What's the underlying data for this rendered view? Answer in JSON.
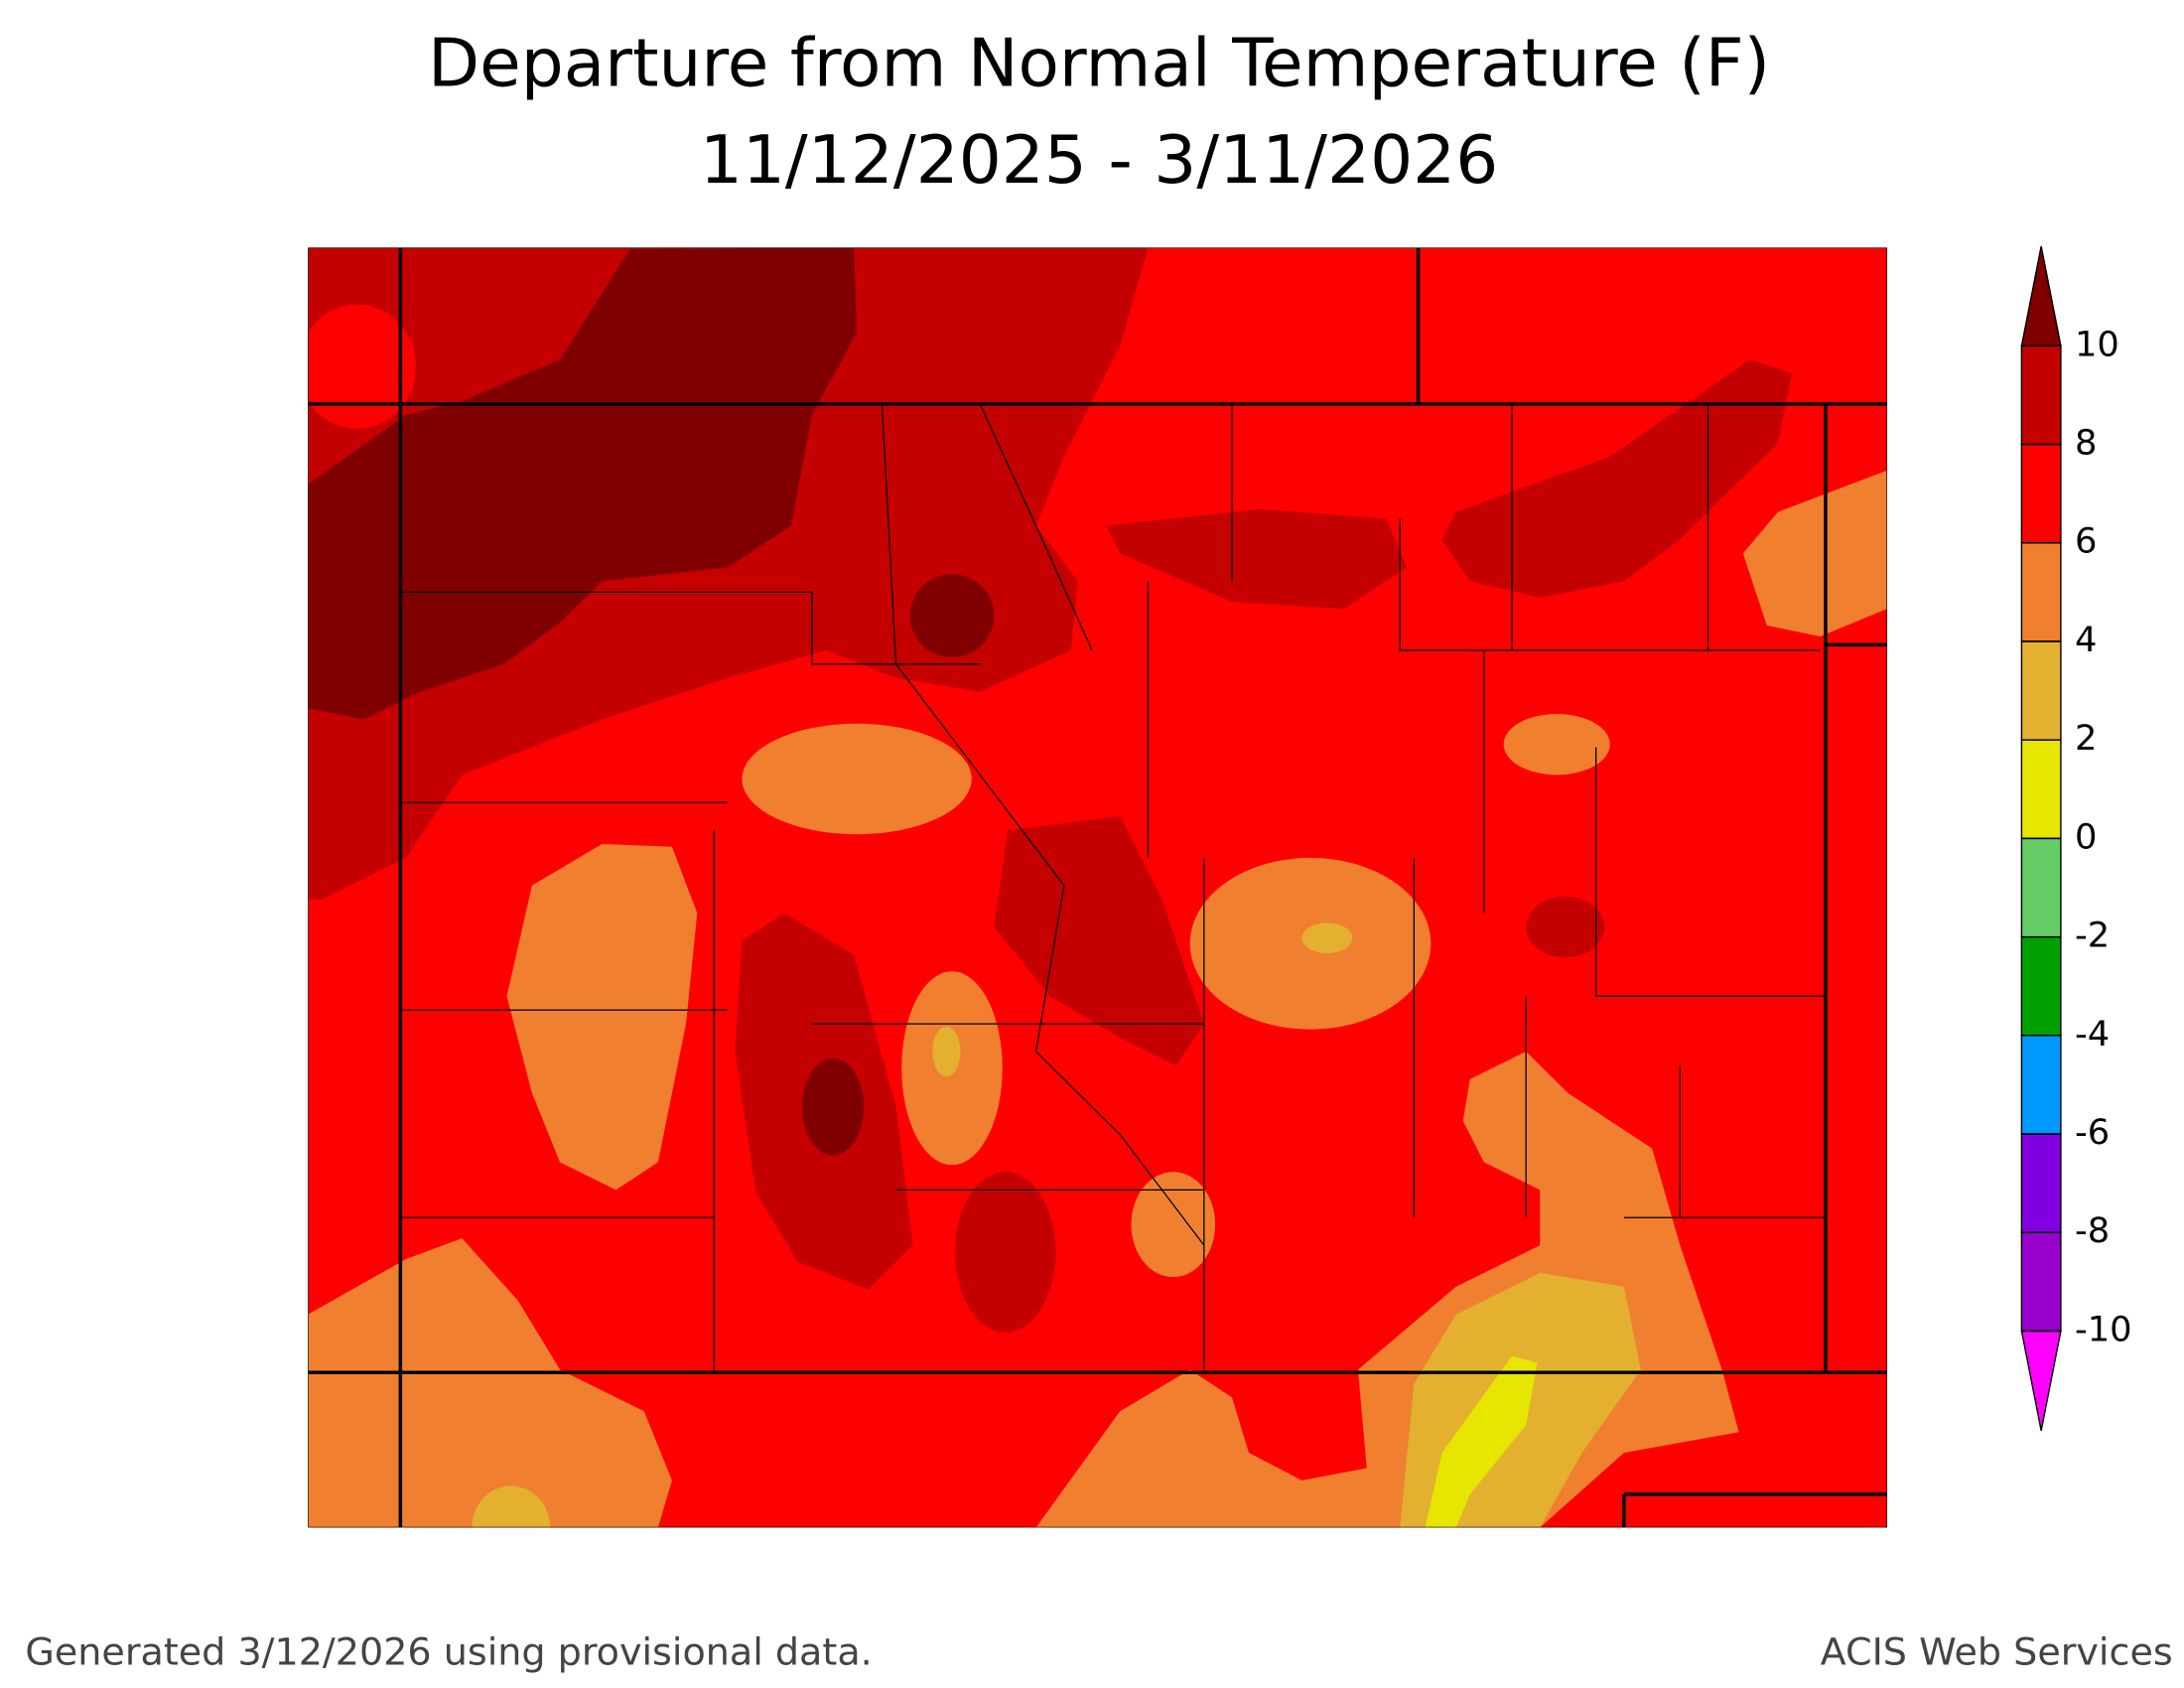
{
  "title": "Departure from Normal Temperature (F)",
  "subtitle": "11/12/2025 - 3/11/2026",
  "footer": {
    "left": "Generated 3/12/2026 using provisional data.",
    "right": "ACIS Web Services"
  },
  "legend": {
    "ticks": [
      10,
      8,
      6,
      4,
      2,
      0,
      -2,
      -4,
      -6,
      -8,
      -10
    ],
    "colors": [
      "#800000",
      "#c40000",
      "#ff0000",
      "#f08030",
      "#e3b030",
      "#e6e600",
      "#66cc66",
      "#00a000",
      "#0099ff",
      "#8000e0",
      "#9900cc",
      "#ff00ff"
    ]
  }
}
